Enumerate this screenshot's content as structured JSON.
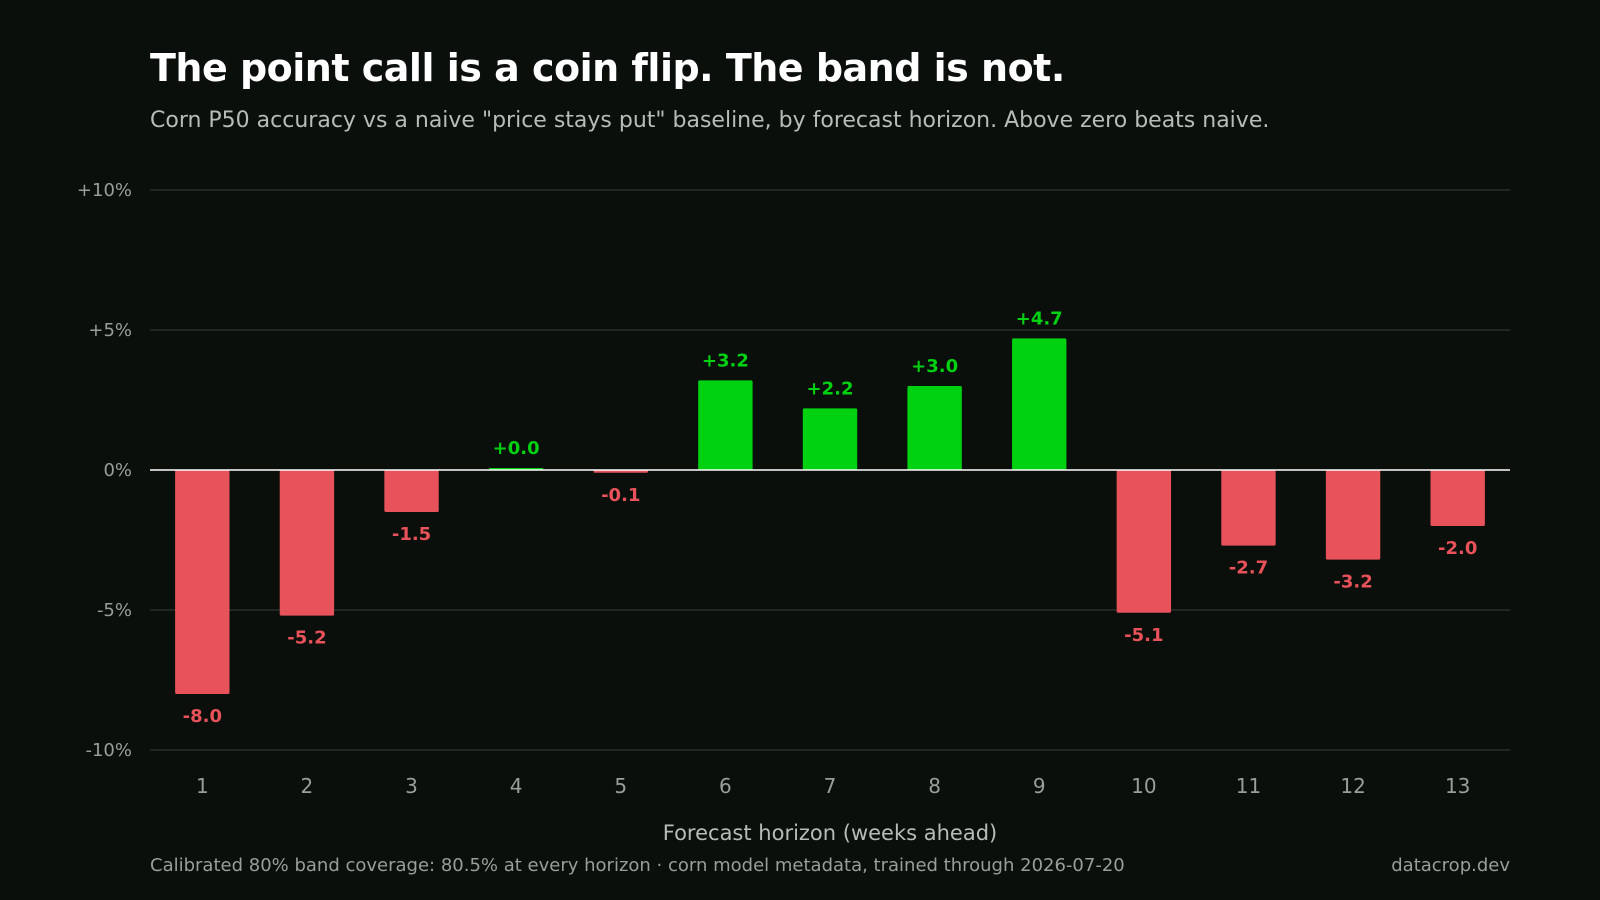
{
  "header": {
    "title": "The point call is a coin flip. The band is not.",
    "subtitle": "Corn P50 accuracy vs a naive \"price stays put\" baseline, by forecast horizon. Above zero beats naive."
  },
  "footer": {
    "note": "Calibrated 80% band coverage: 80.5% at every horizon · corn model metadata, trained through 2026-07-20",
    "brand": "datacrop.dev"
  },
  "colors": {
    "background": "#0b0f0b",
    "positive": "#00d111",
    "negative": "#e8525a",
    "gridline": "#2a2f2a",
    "zero_line": "#ffffff",
    "tick_text": "#9a9e9a",
    "axis_label": "#b8bcb8"
  },
  "chart_data": {
    "type": "bar",
    "title": "The point call is a coin flip. The band is not.",
    "subtitle": "Corn P50 accuracy vs a naive \"price stays put\" baseline, by forecast horizon. Above zero beats naive.",
    "xlabel": "Forecast horizon (weeks ahead)",
    "ylabel": "",
    "categories": [
      "1",
      "2",
      "3",
      "4",
      "5",
      "6",
      "7",
      "8",
      "9",
      "10",
      "11",
      "12",
      "13"
    ],
    "values": [
      -8.0,
      -5.2,
      -1.5,
      0.0,
      -0.1,
      3.2,
      2.2,
      3.0,
      4.7,
      -5.1,
      -2.7,
      -3.2,
      -2.0
    ],
    "data_labels": [
      "-8.0",
      "-5.2",
      "-1.5",
      "+0.0",
      "-0.1",
      "+3.2",
      "+2.2",
      "+3.0",
      "+4.7",
      "-5.1",
      "-2.7",
      "-3.2",
      "-2.0"
    ],
    "ylim": [
      -10,
      10
    ],
    "yticks": [
      10,
      5,
      0,
      -5,
      -10
    ],
    "ytick_labels": [
      "+10%",
      "+5%",
      "0%",
      "-5%",
      "-10%"
    ],
    "grid": true,
    "legend": "none"
  }
}
